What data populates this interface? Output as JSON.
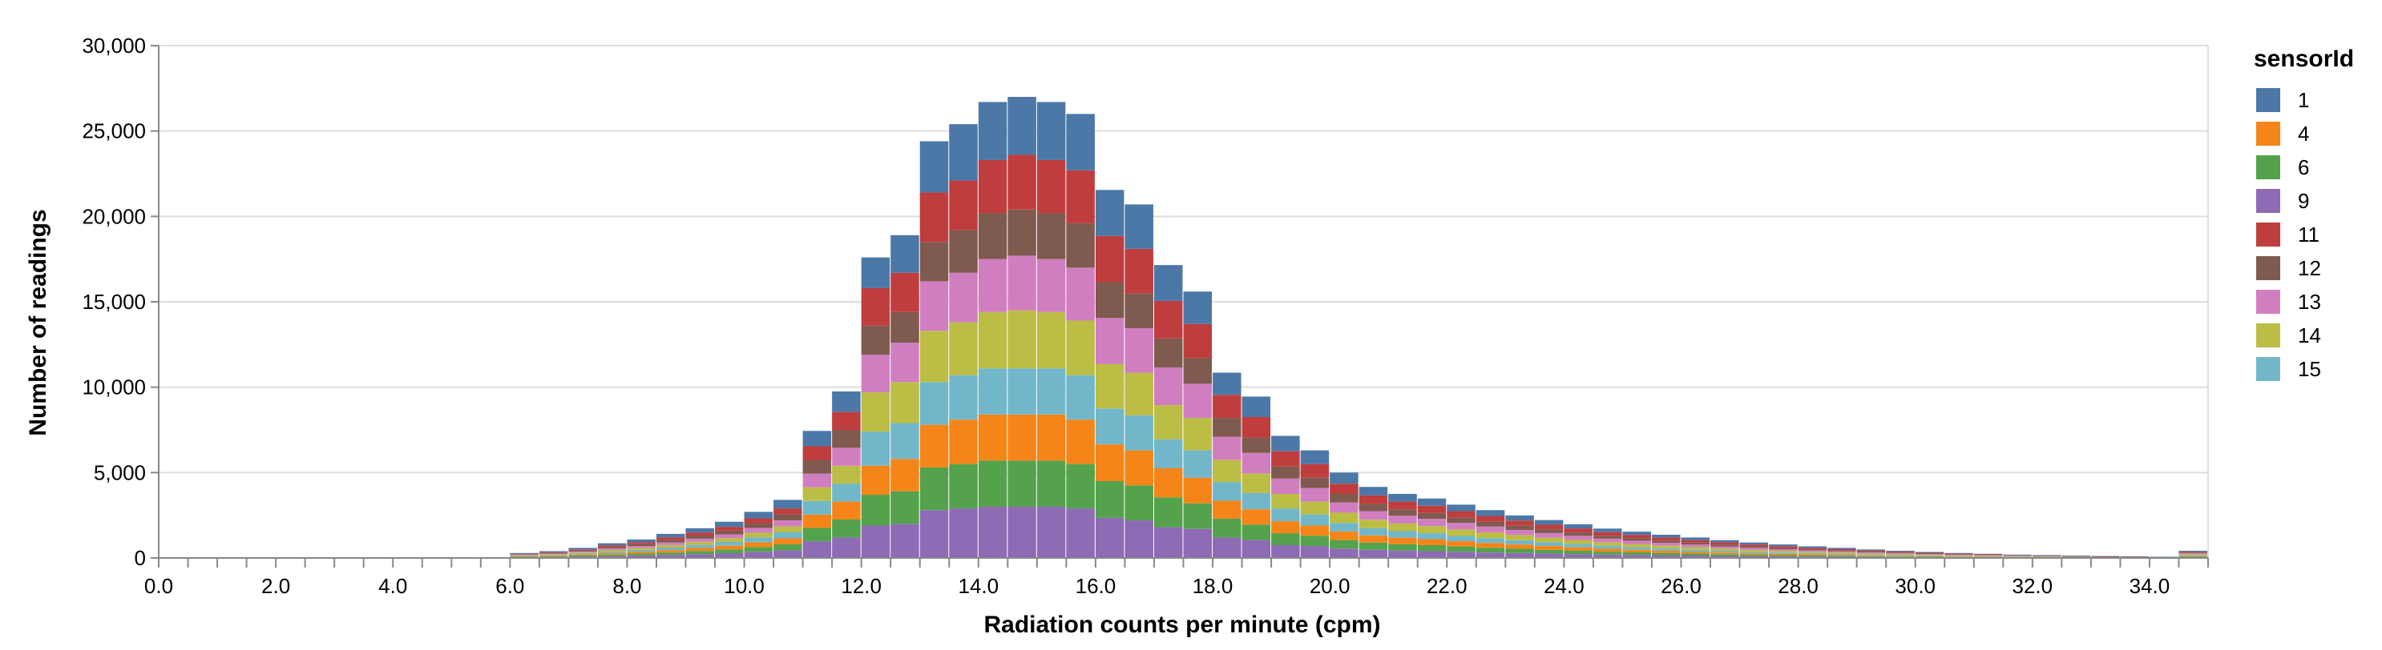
{
  "chart_data": {
    "type": "bar",
    "stacked": true,
    "x_label": "Radiation counts per minute (cpm)",
    "y_label": "Number of readings",
    "x_domain": [
      0,
      35
    ],
    "y_domain": [
      0,
      30000
    ],
    "bin_width": 0.5,
    "x_ticks": [
      "0.0",
      "2.0",
      "4.0",
      "6.0",
      "8.0",
      "10.0",
      "12.0",
      "14.0",
      "16.0",
      "18.0",
      "20.0",
      "22.0",
      "24.0",
      "26.0",
      "28.0",
      "30.0",
      "32.0",
      "34.0"
    ],
    "x_tick_values": [
      0,
      2,
      4,
      6,
      8,
      10,
      12,
      14,
      16,
      18,
      20,
      22,
      24,
      26,
      28,
      30,
      32,
      34
    ],
    "y_ticks": [
      "0",
      "5,000",
      "10,000",
      "15,000",
      "20,000",
      "25,000",
      "30,000"
    ],
    "y_tick_values": [
      0,
      5000,
      10000,
      15000,
      20000,
      25000,
      30000
    ],
    "grid": true,
    "legend": {
      "title": "sensorId",
      "position": "right",
      "sensors": [
        "1",
        "4",
        "6",
        "9",
        "11",
        "12",
        "13",
        "14",
        "15"
      ],
      "colors": [
        "#4c78a8",
        "#f58518",
        "#54a24b",
        "#8e6bb5",
        "#c03d3e",
        "#7f5a4e",
        "#d17ec1",
        "#bcbd45",
        "#72b7c9"
      ]
    },
    "x_bins": [
      6.0,
      6.5,
      7.0,
      7.5,
      8.0,
      8.5,
      9.0,
      9.5,
      10.0,
      10.5,
      11.0,
      11.5,
      12.0,
      12.5,
      13.0,
      13.5,
      14.0,
      14.5,
      15.0,
      15.5,
      16.0,
      16.5,
      17.0,
      17.5,
      18.0,
      18.5,
      19.0,
      19.5,
      20.0,
      20.5,
      21.0,
      21.5,
      22.0,
      22.5,
      23.0,
      23.5,
      24.0,
      24.5,
      25.0,
      25.5,
      26.0,
      26.5,
      27.0,
      27.5,
      28.0,
      28.5,
      29.0,
      29.5,
      30.0,
      30.5,
      31.0,
      31.5,
      32.0,
      32.5,
      33.0,
      33.5,
      34.0,
      34.5
    ],
    "series": [
      {
        "name": "1",
        "values": [
          40,
          60,
          90,
          120,
          160,
          200,
          250,
          300,
          380,
          500,
          900,
          1200,
          1800,
          2200,
          3000,
          3300,
          3400,
          3400,
          3400,
          3300,
          2700,
          2600,
          2100,
          1900,
          1300,
          1200,
          900,
          800,
          650,
          500,
          450,
          420,
          380,
          340,
          300,
          270,
          240,
          210,
          190,
          170,
          150,
          130,
          115,
          100,
          85,
          75,
          65,
          55,
          45,
          38,
          32,
          26,
          22,
          18,
          15,
          12,
          10,
          60
        ]
      },
      {
        "name": "4",
        "values": [
          30,
          40,
          60,
          90,
          110,
          140,
          180,
          220,
          280,
          350,
          780,
          1050,
          1700,
          1900,
          2500,
          2600,
          2700,
          2700,
          2700,
          2600,
          2150,
          2050,
          1700,
          1500,
          1050,
          900,
          700,
          600,
          500,
          420,
          380,
          350,
          310,
          280,
          250,
          220,
          195,
          170,
          150,
          130,
          115,
          100,
          85,
          75,
          65,
          55,
          45,
          38,
          32,
          26,
          22,
          18,
          15,
          12,
          10,
          8,
          6,
          40
        ]
      },
      {
        "name": "6",
        "values": [
          30,
          40,
          60,
          90,
          110,
          140,
          180,
          220,
          280,
          350,
          780,
          1050,
          1800,
          1900,
          2500,
          2600,
          2700,
          2700,
          2700,
          2600,
          2150,
          2050,
          1750,
          1500,
          1100,
          900,
          700,
          600,
          500,
          420,
          380,
          350,
          310,
          280,
          250,
          220,
          195,
          170,
          150,
          130,
          115,
          100,
          85,
          75,
          65,
          55,
          45,
          38,
          32,
          26,
          22,
          18,
          15,
          12,
          10,
          8,
          6,
          40
        ]
      },
      {
        "name": "9",
        "values": [
          40,
          60,
          80,
          110,
          150,
          180,
          230,
          280,
          360,
          450,
          980,
          1200,
          1900,
          2000,
          2800,
          2900,
          3000,
          3000,
          3000,
          2900,
          2350,
          2200,
          1800,
          1700,
          1200,
          1050,
          750,
          700,
          550,
          480,
          430,
          400,
          360,
          320,
          290,
          260,
          230,
          200,
          180,
          160,
          140,
          120,
          105,
          90,
          80,
          70,
          60,
          50,
          42,
          35,
          28,
          22,
          18,
          14,
          11,
          9,
          7,
          50
        ]
      },
      {
        "name": "11",
        "values": [
          30,
          40,
          60,
          90,
          110,
          150,
          180,
          220,
          280,
          350,
          800,
          1050,
          2200,
          2300,
          2900,
          2900,
          3100,
          3200,
          3100,
          3100,
          2700,
          2600,
          2200,
          2000,
          1350,
          1200,
          900,
          800,
          600,
          500,
          450,
          420,
          380,
          340,
          300,
          270,
          240,
          210,
          190,
          170,
          150,
          130,
          115,
          100,
          85,
          75,
          65,
          55,
          45,
          38,
          32,
          26,
          22,
          18,
          15,
          12,
          10,
          50
        ]
      },
      {
        "name": "12",
        "values": [
          30,
          40,
          60,
          90,
          110,
          150,
          180,
          220,
          280,
          350,
          800,
          1050,
          1700,
          1800,
          2300,
          2500,
          2700,
          2700,
          2700,
          2600,
          2100,
          2050,
          1700,
          1500,
          1100,
          900,
          700,
          600,
          500,
          420,
          380,
          350,
          310,
          280,
          250,
          220,
          195,
          170,
          150,
          130,
          115,
          100,
          85,
          75,
          65,
          55,
          45,
          38,
          32,
          26,
          22,
          18,
          15,
          12,
          10,
          8,
          6,
          40
        ]
      },
      {
        "name": "13",
        "values": [
          30,
          40,
          60,
          90,
          110,
          150,
          180,
          220,
          280,
          350,
          800,
          1050,
          2200,
          2300,
          2900,
          2900,
          3100,
          3200,
          3100,
          3100,
          2700,
          2600,
          2200,
          2000,
          1350,
          1200,
          900,
          800,
          600,
          500,
          450,
          420,
          380,
          340,
          300,
          270,
          240,
          210,
          190,
          170,
          150,
          130,
          115,
          100,
          85,
          75,
          65,
          55,
          45,
          38,
          32,
          26,
          22,
          18,
          15,
          12,
          10,
          50
        ]
      },
      {
        "name": "14",
        "values": [
          30,
          40,
          60,
          90,
          110,
          150,
          180,
          220,
          280,
          350,
          800,
          1050,
          2300,
          2400,
          3000,
          3100,
          3300,
          3400,
          3300,
          3200,
          2600,
          2500,
          2000,
          1900,
          1300,
          1150,
          850,
          750,
          600,
          500,
          450,
          420,
          380,
          340,
          300,
          270,
          240,
          210,
          190,
          170,
          150,
          130,
          115,
          100,
          85,
          75,
          65,
          55,
          45,
          38,
          32,
          26,
          22,
          18,
          15,
          12,
          10,
          50
        ]
      },
      {
        "name": "15",
        "values": [
          30,
          40,
          60,
          90,
          110,
          150,
          180,
          220,
          280,
          350,
          800,
          1050,
          2000,
          2100,
          2500,
          2600,
          2700,
          2700,
          2700,
          2600,
          2100,
          2050,
          1700,
          1600,
          1100,
          950,
          750,
          650,
          500,
          420,
          380,
          350,
          310,
          280,
          250,
          220,
          195,
          170,
          150,
          130,
          115,
          100,
          85,
          75,
          65,
          55,
          45,
          38,
          32,
          26,
          22,
          18,
          15,
          12,
          10,
          8,
          6,
          40
        ]
      }
    ]
  }
}
